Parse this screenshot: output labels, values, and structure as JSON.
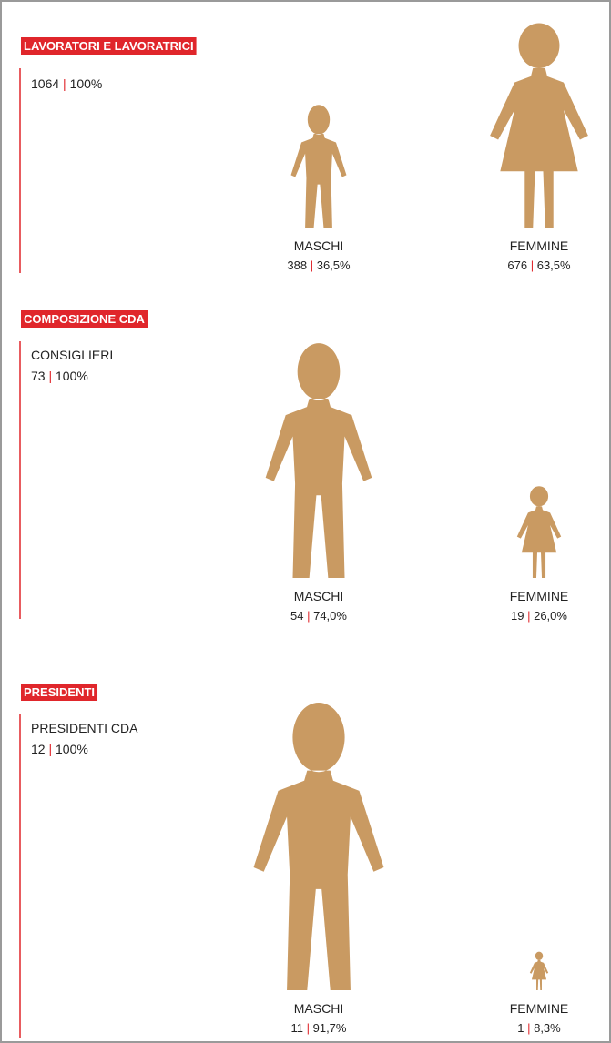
{
  "chart_data": [
    {
      "type": "pictogram",
      "title": "LAVORATORI E LAVORATRICI",
      "total": 1064,
      "total_label": "100%",
      "categories": [
        "MASCHI",
        "FEMMINE"
      ],
      "counts": [
        388,
        676
      ],
      "values": [
        36.5,
        63.5
      ],
      "value_labels": [
        "36,5%",
        "63,5%"
      ],
      "color": "#c99a62"
    },
    {
      "type": "pictogram",
      "title": "COMPOSIZIONE CDA",
      "subtitle": "CONSIGLIERI",
      "total": 73,
      "total_label": "100%",
      "categories": [
        "MASCHI",
        "FEMMINE"
      ],
      "counts": [
        54,
        19
      ],
      "values": [
        74.0,
        26.0
      ],
      "value_labels": [
        "74,0%",
        "26,0%"
      ],
      "color": "#c99a62"
    },
    {
      "type": "pictogram",
      "title": "PRESIDENTI",
      "subtitle": "PRESIDENTI CDA",
      "total": 12,
      "total_label": "100%",
      "categories": [
        "MASCHI",
        "FEMMINE"
      ],
      "counts": [
        11,
        1
      ],
      "values": [
        91.7,
        8.3
      ],
      "value_labels": [
        "91,7%",
        "8,3%"
      ],
      "color": "#c99a62"
    }
  ]
}
